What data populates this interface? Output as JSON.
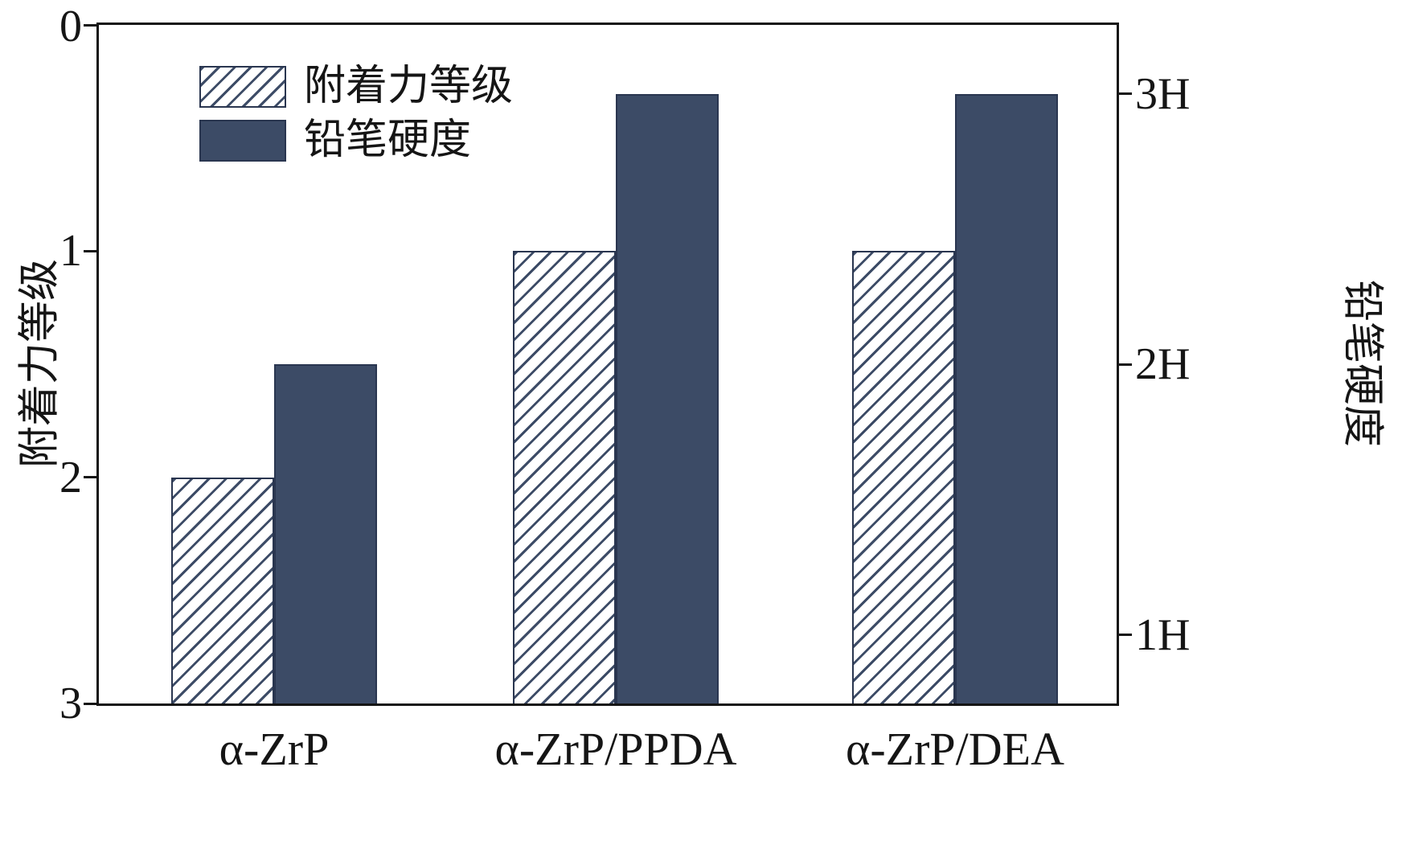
{
  "chart_data": {
    "type": "bar",
    "categories": [
      "α-ZrP",
      "α-ZrP/PPDA",
      "α-ZrP/DEA"
    ],
    "series": [
      {
        "name": "附着力等级",
        "axis": "left",
        "style": "hatched",
        "values": [
          2,
          1,
          1
        ]
      },
      {
        "name": "铅笔硬度",
        "axis": "right",
        "style": "solid",
        "values": [
          2,
          3,
          3
        ],
        "value_labels": [
          "2H",
          "3H",
          "3H"
        ]
      }
    ],
    "left_axis": {
      "label": "附着力等级",
      "ticks": [
        "0",
        "1",
        "2",
        "3"
      ],
      "tick_values": [
        0,
        1,
        2,
        3
      ],
      "range": [
        0,
        3
      ],
      "inverted": true
    },
    "right_axis": {
      "label": "铅笔硬度",
      "ticks": [
        "3H",
        "2H",
        "1H"
      ],
      "tick_values": [
        3,
        2,
        1
      ],
      "range_bottom_top": [
        0.746,
        3.254
      ]
    },
    "legend": {
      "position": "top-left",
      "entries": [
        "附着力等级",
        "铅笔硬度"
      ]
    },
    "colors": {
      "solid_bar": "#3c4b66",
      "bar_border": "#2a3650",
      "hatch_line": "#3c4b66",
      "axis": "#151515",
      "background": "#ffffff"
    }
  }
}
